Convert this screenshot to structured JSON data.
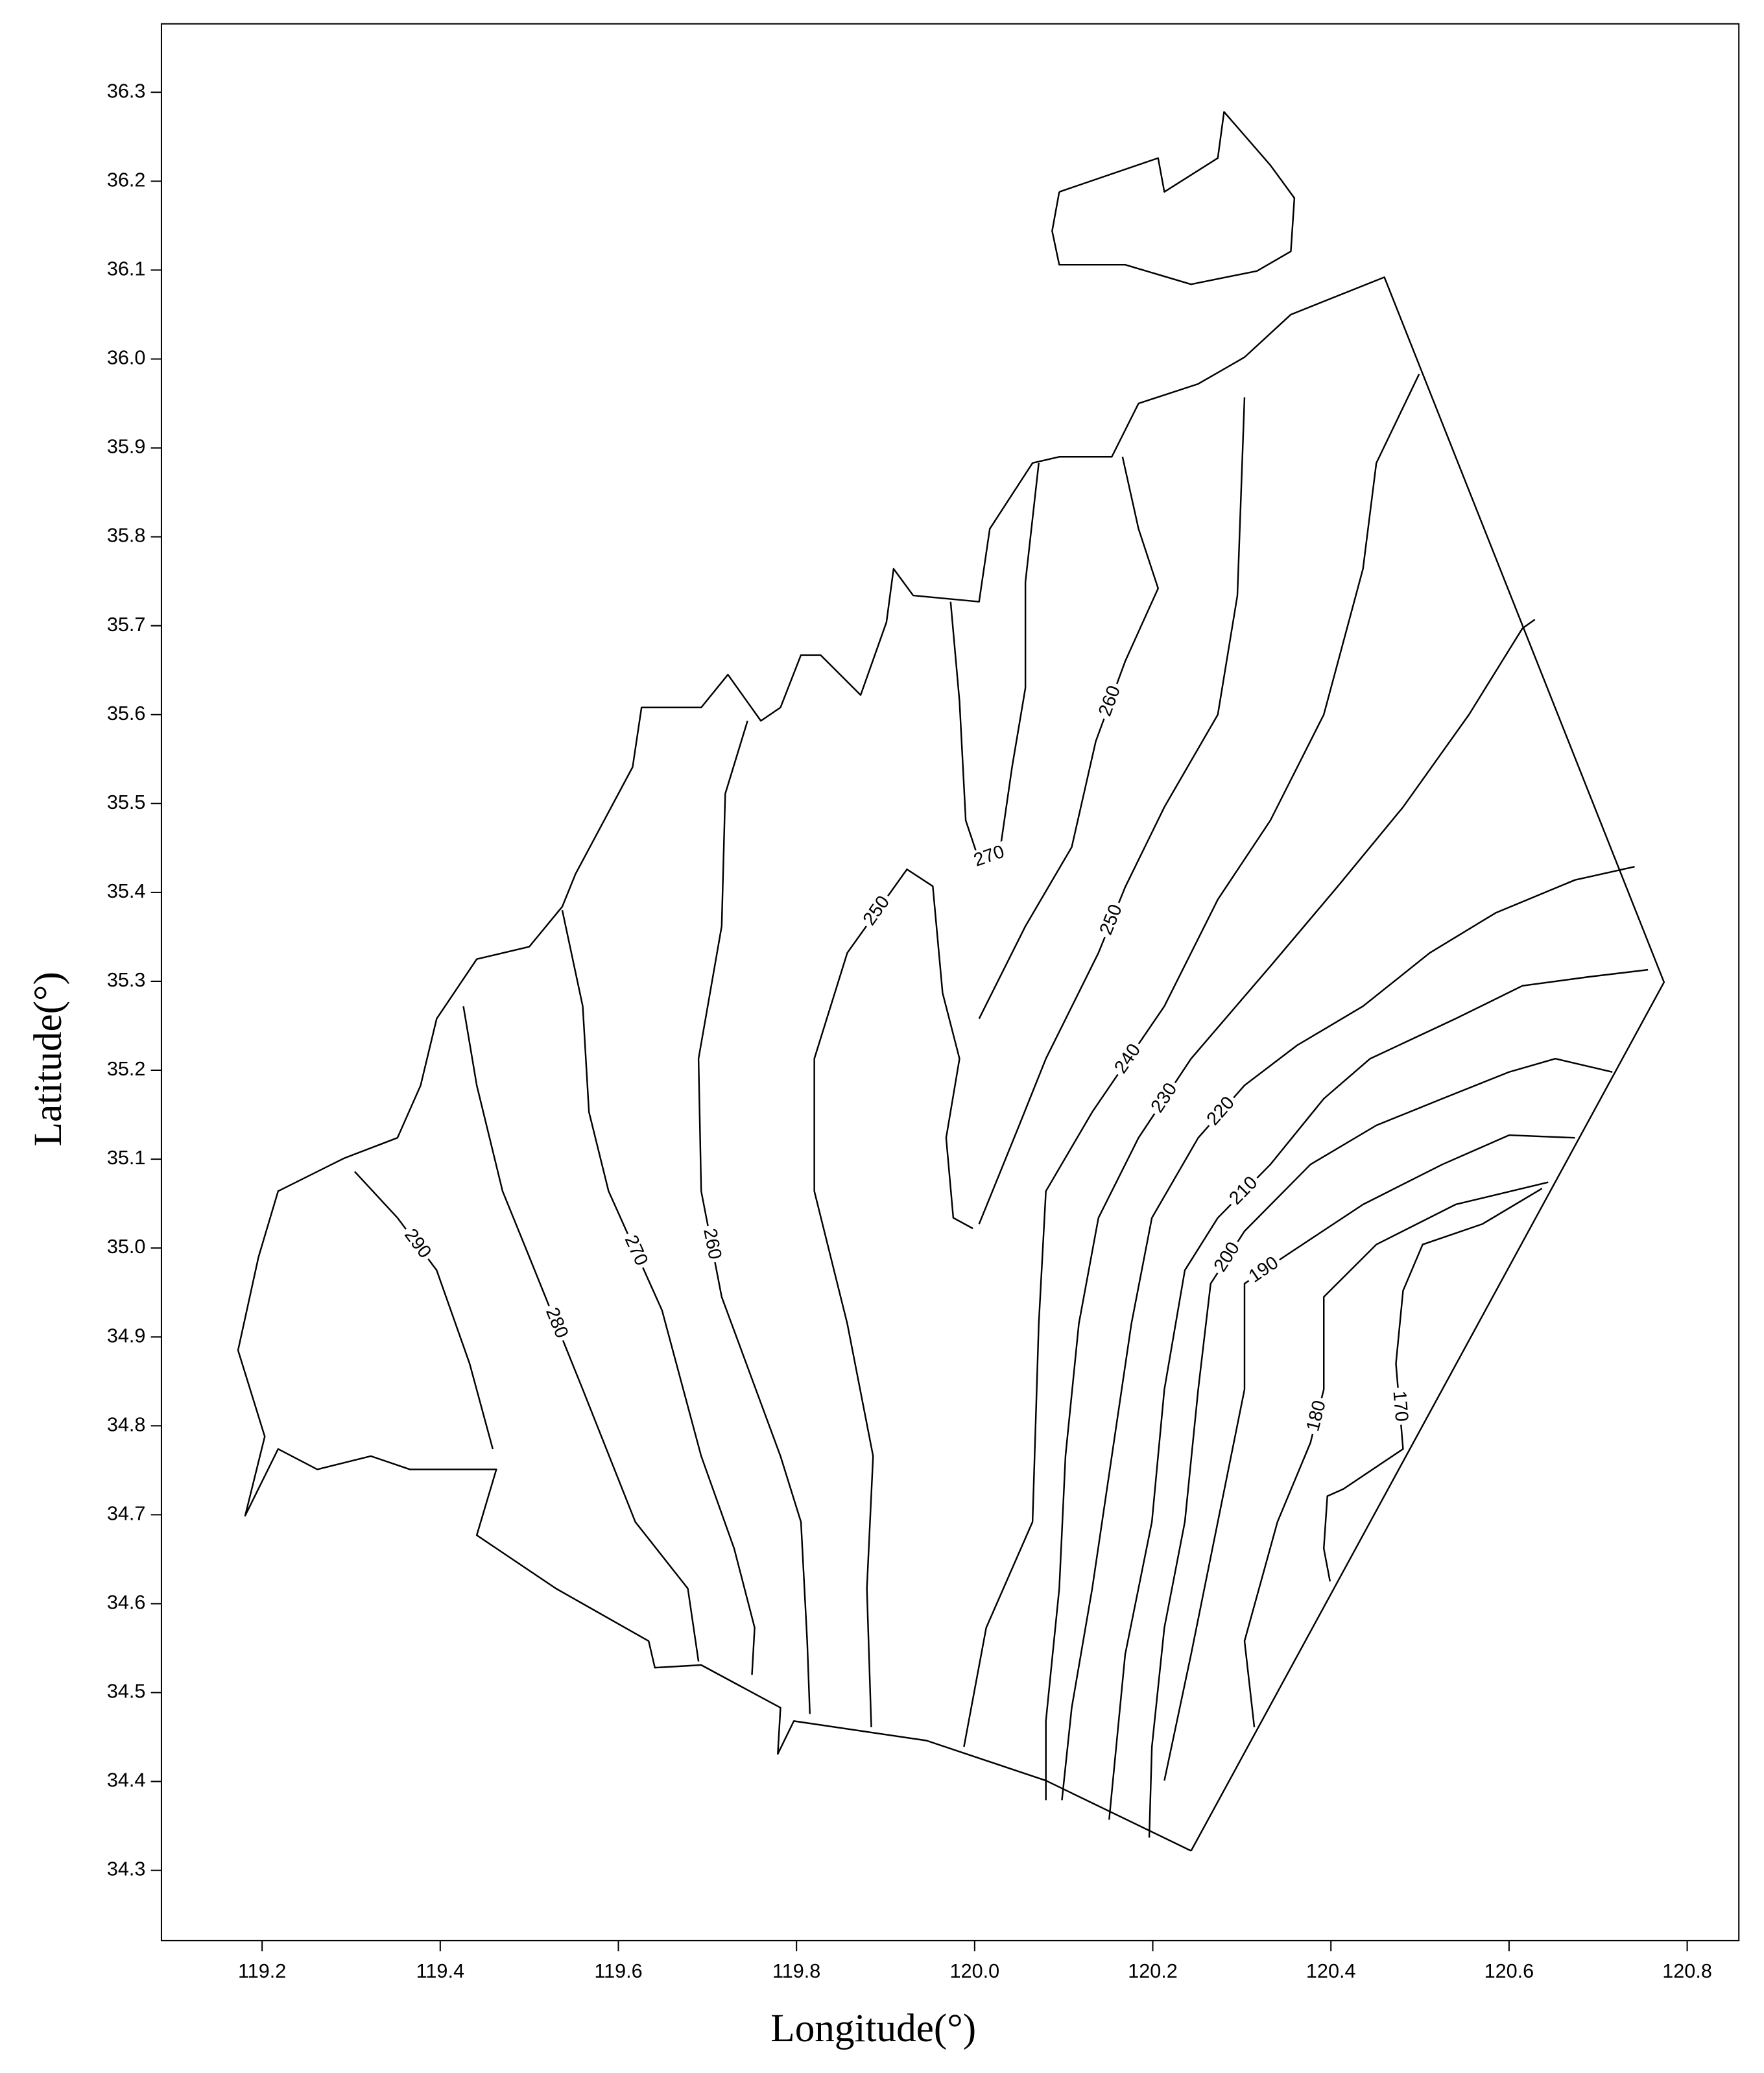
{
  "chart_data": {
    "type": "contour",
    "xlabel": "Longitude(°)",
    "ylabel": "Latitude(°)",
    "xlim": [
      119.087,
      120.858
    ],
    "ylim": [
      34.221,
      36.377
    ],
    "xticks": [
      119.2,
      119.4,
      119.6,
      119.8,
      {
        "value": 120,
        "label": "120.0"
      },
      120.2,
      120.4,
      120.6,
      120.8
    ],
    "yticks": [
      34.3,
      34.4,
      34.5,
      34.6,
      34.7,
      34.8,
      34.9,
      {
        "value": 35,
        "label": "35.0"
      },
      35.1,
      35.2,
      35.3,
      35.4,
      35.5,
      35.6,
      35.7,
      35.8,
      35.9,
      {
        "value": 36,
        "label": "36.0"
      },
      36.1,
      36.2,
      36.3
    ],
    "color": "#000000",
    "coastline": [
      {
        "x": [
          120.243,
          120.774,
          120.46,
          120.355,
          120.303,
          120.251,
          120.184,
          120.154,
          120.095,
          120.065,
          120.017,
          120.005,
          119.931,
          119.909,
          119.901,
          119.872,
          119.827,
          119.805,
          119.782,
          119.76,
          119.723,
          119.693,
          119.626,
          119.616,
          119.552,
          119.537,
          119.5,
          119.441,
          119.396,
          119.378,
          119.352,
          119.292,
          119.218,
          119.196,
          119.173,
          119.203,
          119.181,
          119.218,
          119.262,
          119.322,
          119.366,
          119.463,
          119.441,
          119.53,
          119.634,
          119.641,
          119.693,
          119.782,
          119.779,
          119.797,
          119.946,
          120.08,
          120.243
        ],
        "y": [
          34.322,
          35.299,
          36.092,
          36.05,
          36.002,
          35.972,
          35.95,
          35.89,
          35.89,
          35.883,
          35.809,
          35.727,
          35.734,
          35.764,
          35.704,
          35.622,
          35.667,
          35.667,
          35.608,
          35.593,
          35.645,
          35.608,
          35.608,
          35.541,
          35.421,
          35.384,
          35.339,
          35.325,
          35.258,
          35.183,
          35.124,
          35.101,
          35.064,
          34.99,
          34.885,
          34.788,
          34.699,
          34.774,
          34.751,
          34.766,
          34.751,
          34.751,
          34.677,
          34.617,
          34.558,
          34.528,
          34.531,
          34.483,
          34.431,
          34.468,
          34.446,
          34.401,
          34.322
        ]
      },
      {
        "x": [
          120.095,
          120.206,
          120.213,
          120.273,
          120.28,
          120.332,
          120.359,
          120.355,
          120.317,
          120.243,
          120.169,
          120.095,
          120.087,
          120.095
        ],
        "y": [
          36.188,
          36.226,
          36.188,
          36.226,
          36.278,
          36.218,
          36.181,
          36.121,
          36.099,
          36.084,
          36.106,
          36.106,
          36.144,
          36.188
        ]
      }
    ],
    "contours": [
      {
        "level": 290,
        "x": [
          119.304,
          119.352,
          119.396,
          119.433,
          119.459
        ],
        "y": [
          35.086,
          35.034,
          34.975,
          34.87,
          34.774
        ]
      },
      {
        "level": 280,
        "x": [
          119.426,
          119.441,
          119.47,
          119.5,
          119.56,
          119.619,
          119.678,
          119.69
        ],
        "y": [
          35.272,
          35.183,
          35.064,
          34.99,
          34.841,
          34.692,
          34.617,
          34.535
        ]
      },
      {
        "level": 270,
        "x": [
          119.537,
          119.56,
          119.567,
          119.589,
          119.649,
          119.693,
          119.73,
          119.753,
          119.75
        ],
        "y": [
          35.38,
          35.272,
          35.153,
          35.064,
          34.93,
          34.766,
          34.662,
          34.573,
          34.52
        ]
      },
      {
        "level": 260,
        "x": [
          119.745,
          119.72,
          119.716,
          119.69,
          119.693,
          119.716,
          119.782,
          119.805,
          119.812,
          119.815
        ],
        "y": [
          35.593,
          35.511,
          35.362,
          35.213,
          35.064,
          34.945,
          34.766,
          34.692,
          34.558,
          34.476
        ]
      },
      {
        "level": 250,
        "x": [
          119.884,
          119.879,
          119.886,
          119.857,
          119.82,
          119.82,
          119.857,
          119.924,
          119.953,
          119.964,
          119.983,
          119.968,
          119.976,
          119.998
        ],
        "y": [
          34.461,
          34.617,
          34.766,
          34.915,
          35.064,
          35.213,
          35.332,
          35.426,
          35.407,
          35.287,
          35.213,
          35.124,
          35.034,
          35.022
        ]
      },
      {
        "level": 250,
        "x": [
          120.005,
          120.05,
          120.08,
          120.139,
          120.169,
          120.213,
          120.273,
          120.295,
          120.303
        ],
        "y": [
          35.027,
          35.138,
          35.213,
          35.332,
          35.406,
          35.496,
          35.6,
          35.734,
          35.957
        ]
      },
      {
        "level": 260,
        "x": [
          120.005,
          120.057,
          120.109,
          120.136,
          120.169,
          120.206,
          120.184,
          120.166
        ],
        "y": [
          35.258,
          35.362,
          35.451,
          35.57,
          35.66,
          35.742,
          35.809,
          35.89
        ]
      },
      {
        "level": 270,
        "x": [
          119.973,
          119.983,
          119.99,
          120.005,
          120.028,
          120.042,
          120.057,
          120.057,
          120.072
        ],
        "y": [
          35.727,
          35.615,
          35.481,
          35.436,
          35.444,
          35.541,
          35.63,
          35.749,
          35.883
        ]
      },
      {
        "level": 240,
        "x": [
          119.988,
          120.013,
          120.065,
          120.072,
          120.08,
          120.132,
          120.213,
          120.273,
          120.332,
          120.392,
          120.436,
          120.451,
          120.499
        ],
        "y": [
          34.439,
          34.573,
          34.692,
          34.915,
          35.064,
          35.153,
          35.272,
          35.392,
          35.481,
          35.6,
          35.764,
          35.883,
          35.983
        ]
      },
      {
        "level": 230,
        "x": [
          120.08,
          120.08,
          120.095,
          120.102,
          120.117,
          120.139,
          120.184,
          120.243,
          120.332,
          120.407,
          120.481,
          120.555,
          120.615,
          120.629
        ],
        "y": [
          34.379,
          34.468,
          34.617,
          34.766,
          34.915,
          35.034,
          35.124,
          35.213,
          35.317,
          35.406,
          35.496,
          35.6,
          35.697,
          35.707
        ]
      },
      {
        "level": 220,
        "x": [
          120.098,
          120.109,
          120.132,
          120.154,
          120.176,
          120.199,
          120.251,
          120.303,
          120.362,
          120.436,
          120.511,
          120.585,
          120.674,
          120.741
        ],
        "y": [
          34.379,
          34.483,
          34.617,
          34.766,
          34.915,
          35.034,
          35.124,
          35.183,
          35.228,
          35.272,
          35.332,
          35.377,
          35.414,
          35.429
        ]
      },
      {
        "level": 210,
        "x": [
          120.151,
          120.169,
          120.199,
          120.213,
          120.236,
          120.273,
          120.332,
          120.392,
          120.444,
          120.54,
          120.615,
          120.689,
          120.756
        ],
        "y": [
          34.357,
          34.543,
          34.692,
          34.841,
          34.975,
          35.034,
          35.094,
          35.168,
          35.213,
          35.258,
          35.295,
          35.305,
          35.313
        ]
      },
      {
        "level": 200,
        "x": [
          120.196,
          120.199,
          120.213,
          120.236,
          120.251,
          120.265,
          120.303,
          120.377,
          120.451,
          120.525,
          120.6,
          120.652,
          120.716
        ],
        "y": [
          34.337,
          34.439,
          34.573,
          34.692,
          34.841,
          34.96,
          35.019,
          35.094,
          35.138,
          35.168,
          35.198,
          35.213,
          35.198
        ]
      },
      {
        "level": 190,
        "x": [
          120.213,
          120.243,
          120.273,
          120.303,
          120.303,
          120.347,
          120.436,
          120.525,
          120.6,
          120.674
        ],
        "y": [
          34.401,
          34.543,
          34.692,
          34.841,
          34.96,
          34.99,
          35.049,
          35.094,
          35.127,
          35.124
        ]
      },
      {
        "level": 180,
        "x": [
          120.314,
          120.303,
          120.34,
          120.377,
          120.392,
          120.392,
          120.451,
          120.54,
          120.644
        ],
        "y": [
          34.461,
          34.558,
          34.692,
          34.781,
          34.841,
          34.945,
          35.004,
          35.049,
          35.074
        ]
      },
      {
        "level": 170,
        "x": [
          120.399,
          120.392,
          120.396,
          120.414,
          120.481,
          120.473,
          120.481,
          120.503,
          120.57,
          120.637
        ],
        "y": [
          34.625,
          34.662,
          34.721,
          34.729,
          34.774,
          34.87,
          34.952,
          35.004,
          35.027,
          35.067
        ]
      }
    ]
  }
}
